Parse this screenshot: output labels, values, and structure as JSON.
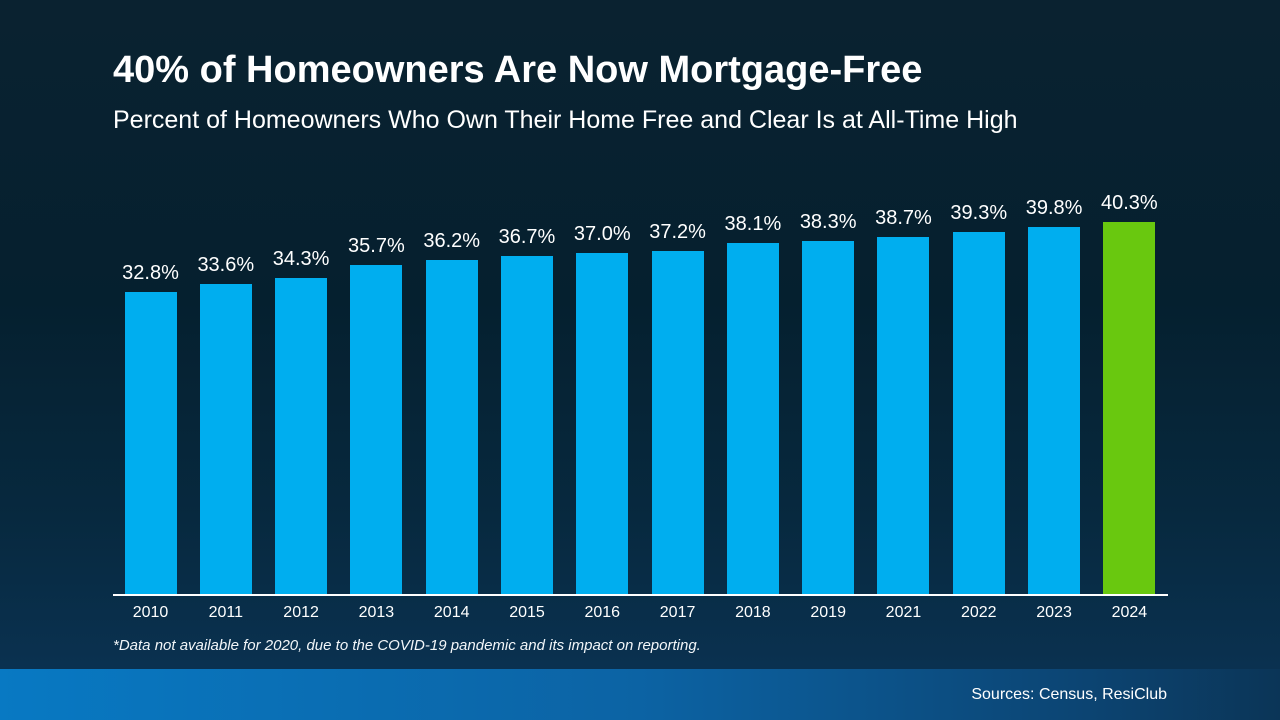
{
  "slide": {
    "title": "40% of Homeowners Are Now Mortgage-Free",
    "subtitle": "Percent of Homeowners Who Own Their Home Free and Clear Is at All-Time High",
    "footnote": "*Data not available for 2020, due to the COVID-19 pandemic and its impact on reporting.",
    "sources": "Sources: Census, ResiClub"
  },
  "colors": {
    "bar": "#00AEEF",
    "bar_highlight": "#69C80F",
    "background_top": "#0A2230",
    "background_bottom": "#0B3456",
    "footer_gradient_left": "#0879C3",
    "footer_gradient_right": "#0B3557",
    "axis_line": "#FFFFFF",
    "text": "#FFFFFF"
  },
  "chart_data": {
    "type": "bar",
    "categories": [
      "2010",
      "2011",
      "2012",
      "2013",
      "2014",
      "2015",
      "2016",
      "2017",
      "2018",
      "2019",
      "2021",
      "2022",
      "2023",
      "2024"
    ],
    "values": [
      32.8,
      33.6,
      34.3,
      35.7,
      36.2,
      36.7,
      37.0,
      37.2,
      38.1,
      38.3,
      38.7,
      39.3,
      39.8,
      40.3
    ],
    "labels": [
      "32.8%",
      "33.6%",
      "34.3%",
      "35.7%",
      "36.2%",
      "36.7%",
      "37.0%",
      "37.2%",
      "38.1%",
      "38.3%",
      "38.7%",
      "39.3%",
      "39.8%",
      "40.3%"
    ],
    "highlight_index": 13,
    "title": "40% of Homeowners Are Now Mortgage-Free",
    "subtitle": "Percent of Homeowners Who Own Their Home Free and Clear Is at All-Time High",
    "xlabel": "",
    "ylabel": "",
    "ylim": [
      0,
      45
    ],
    "grid": false,
    "legend": false,
    "note": "*Data not available for 2020, due to the COVID-19 pandemic and its impact on reporting."
  }
}
